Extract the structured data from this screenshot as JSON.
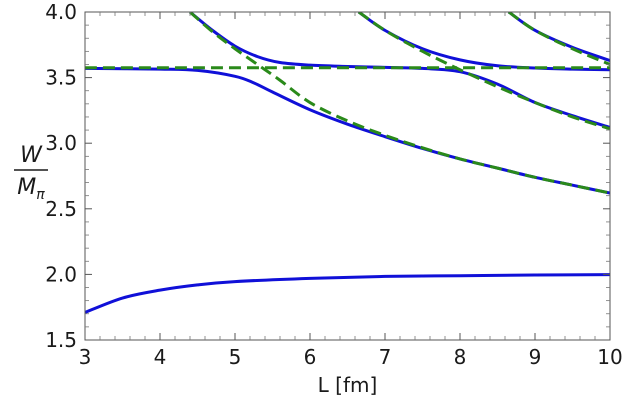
{
  "chart_data": {
    "type": "line",
    "xlabel": "L [fm]",
    "ylabel_numerator": "W",
    "ylabel_denominator": "M",
    "ylabel_subscript": "π",
    "xlim": [
      3,
      10
    ],
    "ylim": [
      1.5,
      4.0
    ],
    "xticks": [
      3,
      4,
      5,
      6,
      7,
      8,
      9,
      10
    ],
    "yticks": [
      1.5,
      2.0,
      2.5,
      3.0,
      3.5,
      4.0
    ],
    "yticklabels": [
      "1.5",
      "2.0",
      "2.5",
      "3.0",
      "3.5",
      "4.0"
    ],
    "grid": false,
    "colors": {
      "solid": "#1010d8",
      "dashed": "#2a8a1a"
    },
    "series": [
      {
        "style": "solid",
        "x": [
          3.0,
          3.5,
          4.0,
          4.5,
          5.0,
          6.0,
          7.0,
          8.0,
          9.0,
          10.0
        ],
        "y": [
          1.71,
          1.82,
          1.88,
          1.92,
          1.945,
          1.97,
          1.985,
          1.99,
          1.995,
          1.998
        ]
      },
      {
        "style": "solid",
        "x": [
          3.0,
          4.0,
          4.5,
          5.0,
          5.25,
          5.5,
          6.0,
          6.5,
          7.0,
          7.5,
          8.0,
          8.5,
          9.0,
          9.5,
          10.0
        ],
        "y": [
          3.57,
          3.565,
          3.555,
          3.51,
          3.46,
          3.39,
          3.255,
          3.145,
          3.05,
          2.96,
          2.88,
          2.81,
          2.74,
          2.68,
          2.62
        ]
      },
      {
        "style": "solid",
        "x": [
          4.4,
          4.7,
          5.0,
          5.3,
          5.6,
          6.0,
          6.5,
          7.0,
          7.5,
          8.0,
          8.5,
          9.0,
          9.5,
          10.0
        ],
        "y": [
          4.0,
          3.86,
          3.74,
          3.66,
          3.615,
          3.595,
          3.585,
          3.578,
          3.57,
          3.545,
          3.45,
          3.31,
          3.21,
          3.12
        ]
      },
      {
        "style": "solid",
        "x": [
          6.65,
          7.0,
          7.5,
          8.0,
          8.5,
          9.0,
          9.5,
          10.0
        ],
        "y": [
          4.0,
          3.86,
          3.72,
          3.635,
          3.59,
          3.573,
          3.565,
          3.56
        ]
      },
      {
        "style": "solid",
        "x": [
          8.65,
          9.0,
          9.5,
          10.0
        ],
        "y": [
          4.0,
          3.86,
          3.73,
          3.63
        ]
      },
      {
        "style": "dashed",
        "x": [
          3.0,
          10.0
        ],
        "y": [
          3.575,
          3.575
        ]
      },
      {
        "style": "dashed",
        "x": [
          4.4,
          4.7,
          5.0,
          5.3,
          5.6,
          6.0,
          6.5,
          7.0,
          7.5,
          8.0,
          8.5,
          9.0,
          9.5,
          10.0
        ],
        "y": [
          4.0,
          3.85,
          3.72,
          3.6,
          3.48,
          3.31,
          3.17,
          3.06,
          2.965,
          2.88,
          2.81,
          2.74,
          2.68,
          2.62
        ]
      },
      {
        "style": "dashed",
        "x": [
          6.65,
          7.0,
          7.5,
          8.0,
          8.5,
          9.0,
          9.5,
          10.0
        ],
        "y": [
          4.0,
          3.86,
          3.7,
          3.56,
          3.43,
          3.31,
          3.2,
          3.11
        ]
      },
      {
        "style": "dashed",
        "x": [
          8.65,
          9.0,
          9.5,
          10.0
        ],
        "y": [
          4.0,
          3.86,
          3.72,
          3.6
        ]
      }
    ]
  }
}
